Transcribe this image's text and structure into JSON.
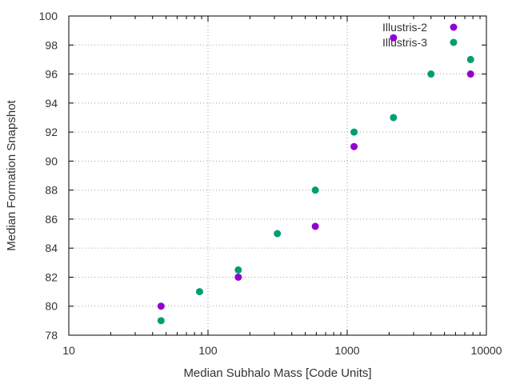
{
  "chart_data": {
    "type": "scatter",
    "title": "",
    "xlabel": "Median Subhalo Mass [Code Units]",
    "ylabel": "Median Formation Snapshot",
    "xscale": "log",
    "xlim": [
      10,
      10000
    ],
    "ylim": [
      78,
      100
    ],
    "x_ticks": [
      10,
      100,
      1000,
      10000
    ],
    "x_tick_labels": [
      "10",
      "100",
      "1000",
      "10000"
    ],
    "y_ticks": [
      78,
      80,
      82,
      84,
      86,
      88,
      90,
      92,
      94,
      96,
      98,
      100
    ],
    "y_tick_labels": [
      "78",
      "80",
      "82",
      "84",
      "86",
      "88",
      "90",
      "92",
      "94",
      "96",
      "98",
      "100"
    ],
    "grid": true,
    "legend_position": "top-right",
    "series": [
      {
        "name": "Illustris-2",
        "color": "#9400d3",
        "marker": "circle",
        "points": [
          {
            "x": 46,
            "y": 80
          },
          {
            "x": 165,
            "y": 82
          },
          {
            "x": 590,
            "y": 85.5
          },
          {
            "x": 1120,
            "y": 91
          },
          {
            "x": 2150,
            "y": 98.5
          },
          {
            "x": 7700,
            "y": 96
          }
        ]
      },
      {
        "name": "Illustris-3",
        "color": "#009e73",
        "marker": "circle",
        "points": [
          {
            "x": 46,
            "y": 79
          },
          {
            "x": 87,
            "y": 81
          },
          {
            "x": 165,
            "y": 82.5
          },
          {
            "x": 315,
            "y": 85
          },
          {
            "x": 590,
            "y": 88
          },
          {
            "x": 1120,
            "y": 92
          },
          {
            "x": 2150,
            "y": 93
          },
          {
            "x": 4000,
            "y": 96
          },
          {
            "x": 7700,
            "y": 97
          }
        ]
      }
    ]
  }
}
